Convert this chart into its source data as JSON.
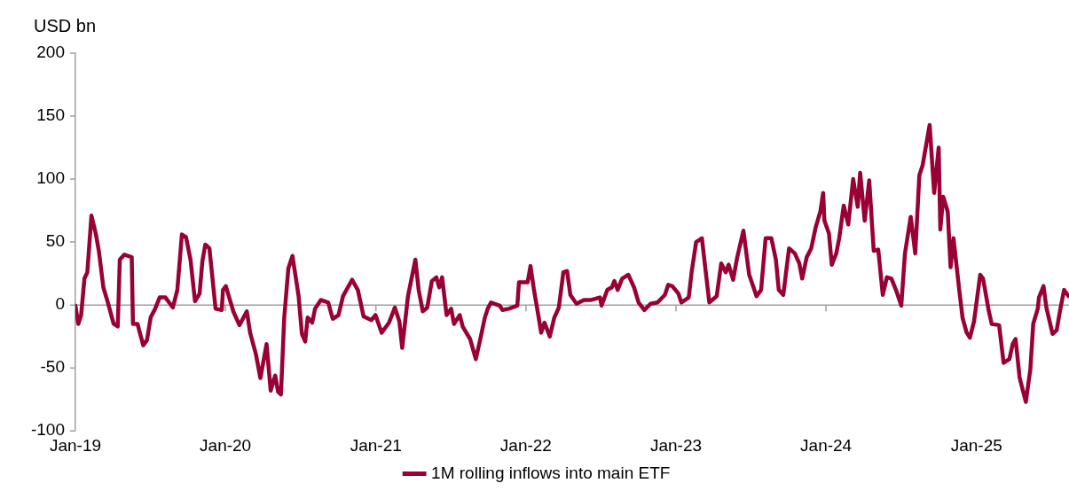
{
  "chart_data": {
    "type": "line",
    "ylabel": "USD bn",
    "xlim": [
      "2019-01-01",
      "2025-08-14"
    ],
    "ylim": [
      -100,
      200
    ],
    "yticks": [
      -100,
      -50,
      0,
      50,
      100,
      150,
      200
    ],
    "xticks": [
      {
        "value": "2019-01",
        "label": "Jan-19"
      },
      {
        "value": "2020-01",
        "label": "Jan-20"
      },
      {
        "value": "2021-01",
        "label": "Jan-21"
      },
      {
        "value": "2022-01",
        "label": "Jan-22"
      },
      {
        "value": "2023-01",
        "label": "Jan-23"
      },
      {
        "value": "2024-01",
        "label": "Jan-24"
      },
      {
        "value": "2025-01",
        "label": "Jan-25"
      }
    ],
    "grid": false,
    "ref_lines": [
      {
        "axis": "y",
        "value": 0,
        "color": "#a0a0a0"
      }
    ],
    "legend": "bottom",
    "marker": "none",
    "line_style": "solid",
    "series": [
      {
        "name": "1M rolling inflows into main ETF",
        "color": "#990033",
        "x": [
          "2019-01-01",
          "2019-01-08",
          "2019-01-15",
          "2019-01-23",
          "2019-01-30",
          "2019-02-09",
          "2019-02-20",
          "2019-02-27",
          "2019-03-10",
          "2019-03-21",
          "2019-04-04",
          "2019-04-14",
          "2019-04-19",
          "2019-04-30",
          "2019-05-18",
          "2019-05-21",
          "2019-06-01",
          "2019-06-15",
          "2019-06-24",
          "2019-07-03",
          "2019-07-14",
          "2019-07-25",
          "2019-08-08",
          "2019-08-26",
          "2019-09-06",
          "2019-09-17",
          "2019-09-27",
          "2019-10-08",
          "2019-10-19",
          "2019-10-30",
          "2019-11-06",
          "2019-11-13",
          "2019-11-23",
          "2019-11-28",
          "2019-12-08",
          "2019-12-23",
          "2019-12-26",
          "2020-01-02",
          "2020-01-20",
          "2020-02-04",
          "2020-02-22",
          "2020-03-01",
          "2020-03-15",
          "2020-03-26",
          "2020-04-10",
          "2020-04-20",
          "2020-05-01",
          "2020-05-08",
          "2020-05-15",
          "2020-05-23",
          "2020-06-02",
          "2020-06-12",
          "2020-06-27",
          "2020-07-05",
          "2020-07-13",
          "2020-07-19",
          "2020-07-30",
          "2020-08-06",
          "2020-08-20",
          "2020-09-07",
          "2020-09-18",
          "2020-10-02",
          "2020-10-13",
          "2020-11-04",
          "2020-11-18",
          "2020-12-02",
          "2020-12-21",
          "2020-12-31",
          "2021-01-15",
          "2021-02-02",
          "2021-02-16",
          "2021-02-27",
          "2021-03-06",
          "2021-03-20",
          "2021-04-07",
          "2021-04-15",
          "2021-04-25",
          "2021-05-06",
          "2021-05-17",
          "2021-05-28",
          "2021-06-04",
          "2021-06-11",
          "2021-06-22",
          "2021-07-03",
          "2021-07-10",
          "2021-07-24",
          "2021-07-31",
          "2021-08-18",
          "2021-09-01",
          "2021-09-12",
          "2021-09-23",
          "2021-09-30",
          "2021-10-08",
          "2021-10-29",
          "2021-11-05",
          "2021-11-20",
          "2021-12-11",
          "2021-12-15",
          "2022-01-05",
          "2022-01-12",
          "2022-01-20",
          "2022-01-31",
          "2022-02-07",
          "2022-02-15",
          "2022-02-28",
          "2022-03-11",
          "2022-03-22",
          "2022-04-02",
          "2022-04-11",
          "2022-04-19",
          "2022-05-04",
          "2022-05-22",
          "2022-06-09",
          "2022-06-30",
          "2022-07-04",
          "2022-07-18",
          "2022-07-29",
          "2022-08-04",
          "2022-08-12",
          "2022-08-23",
          "2022-09-07",
          "2022-09-21",
          "2022-10-02",
          "2022-10-16",
          "2022-10-31",
          "2022-11-17",
          "2022-12-05",
          "2022-12-13",
          "2022-12-23",
          "2023-01-07",
          "2023-01-14",
          "2023-02-01",
          "2023-02-08",
          "2023-02-19",
          "2023-03-05",
          "2023-03-12",
          "2023-03-23",
          "2023-04-10",
          "2023-04-21",
          "2023-05-02",
          "2023-05-09",
          "2023-05-20",
          "2023-05-30",
          "2023-06-14",
          "2023-06-28",
          "2023-07-16",
          "2023-07-27",
          "2023-08-03",
          "2023-08-07",
          "2023-08-21",
          "2023-09-01",
          "2023-09-08",
          "2023-09-19",
          "2023-10-03",
          "2023-10-17",
          "2023-10-28",
          "2023-11-04",
          "2023-11-15",
          "2023-11-26",
          "2023-12-07",
          "2023-12-18",
          "2023-12-25",
          "2023-12-28",
          "2024-01-08",
          "2024-01-15",
          "2024-01-26",
          "2024-02-02",
          "2024-02-13",
          "2024-02-24",
          "2024-03-07",
          "2024-03-18",
          "2024-03-24",
          "2024-04-04",
          "2024-04-15",
          "2024-04-26",
          "2024-05-07",
          "2024-05-18",
          "2024-05-28",
          "2024-06-08",
          "2024-06-19",
          "2024-07-02",
          "2024-07-11",
          "2024-07-25",
          "2024-08-05",
          "2024-08-15",
          "2024-08-23",
          "2024-09-09",
          "2024-09-20",
          "2024-10-01",
          "2024-10-05",
          "2024-10-12",
          "2024-10-23",
          "2024-10-30",
          "2024-11-06",
          "2024-11-20",
          "2024-11-28",
          "2024-12-08",
          "2024-12-16",
          "2024-12-26",
          "2025-01-10",
          "2025-01-17",
          "2025-01-31",
          "2025-02-07",
          "2025-02-25",
          "2025-03-08",
          "2025-03-22",
          "2025-03-30",
          "2025-04-06",
          "2025-04-16",
          "2025-05-01",
          "2025-05-12",
          "2025-05-19",
          "2025-05-30",
          "2025-06-02",
          "2025-06-13",
          "2025-06-20",
          "2025-07-05",
          "2025-07-15",
          "2025-07-23",
          "2025-08-02",
          "2025-08-13"
        ],
        "values": [
          -0.5,
          -15,
          -8,
          21,
          26,
          71,
          56,
          43,
          14,
          2,
          -15,
          -17,
          36,
          40,
          38,
          -15,
          -15,
          -32,
          -28,
          -10,
          -3,
          6,
          6,
          -2,
          12,
          56,
          54,
          36,
          3,
          9,
          35,
          48,
          45,
          29,
          -3,
          -4,
          12,
          15,
          -5,
          -16,
          -5,
          -22,
          -39,
          -58,
          -31,
          -68,
          -56,
          -69,
          -71,
          -10,
          29,
          39,
          7,
          -23,
          -29,
          -10,
          -14,
          -3,
          4,
          2,
          -11,
          -8,
          7,
          20,
          12,
          -9,
          -12,
          -8,
          -22,
          -14,
          -2,
          -13,
          -34,
          7,
          36,
          12,
          -5,
          -2,
          19,
          22,
          14,
          22,
          -8,
          -3,
          -15,
          -8,
          -17,
          -27,
          -43,
          -27,
          -10,
          -3,
          2,
          -0.5,
          -4,
          -3,
          -0.5,
          18,
          18,
          31,
          13,
          -8,
          -22,
          -14,
          -25,
          -10,
          -2,
          26,
          27,
          8,
          1,
          4,
          4,
          6,
          -0.5,
          12,
          14,
          19,
          12,
          21,
          24,
          14,
          2,
          -4,
          1,
          2,
          8,
          16,
          15,
          9,
          2,
          6,
          26,
          50,
          53,
          33,
          2,
          7,
          33,
          26,
          32,
          20,
          38,
          59,
          24,
          7,
          12,
          38,
          53,
          53,
          36,
          12,
          8,
          45,
          41,
          33,
          21,
          38,
          45,
          62,
          74,
          89,
          67,
          57,
          32,
          41,
          53,
          79,
          64,
          100,
          78,
          105,
          67,
          99,
          43,
          44,
          8,
          22,
          21,
          12,
          -0.5,
          41,
          70,
          41,
          103,
          111,
          143,
          89,
          125,
          60,
          86,
          74,
          30,
          53,
          12,
          -10,
          -22,
          -26,
          -13,
          24,
          21,
          -5,
          -15,
          -16,
          -46,
          -43,
          -31,
          -27,
          -58,
          -77,
          -51,
          -15,
          -3,
          6,
          15,
          -2,
          -23,
          -20,
          -5,
          12,
          7
        ]
      }
    ]
  }
}
